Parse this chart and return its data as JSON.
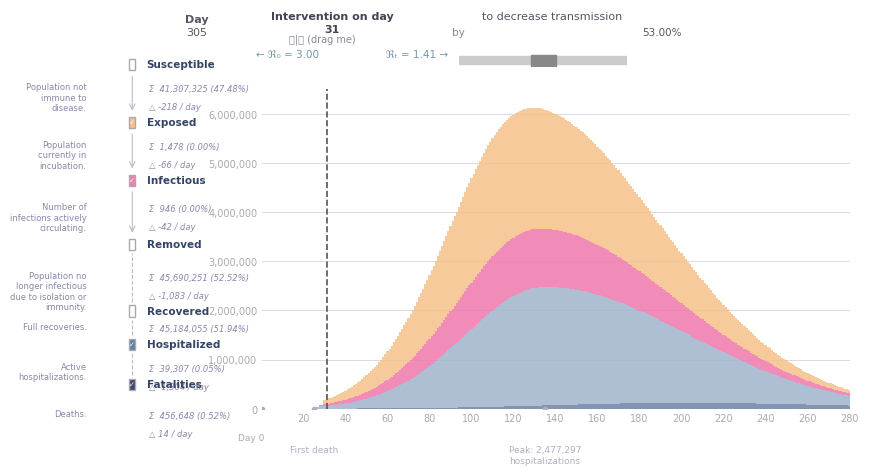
{
  "title_left": "Day\n305",
  "intervention_day": 31,
  "intervention_label": "Intervention on day\n31",
  "r0_label": "← ℜ₀ = 3.00",
  "rt_label": "ℜₜ = 1.41 →",
  "decrease_label": "to decrease transmission",
  "by_label": "by",
  "percent_label": "53.00%",
  "peak_label": "Peak: 2,477,297\nhospitalizations",
  "first_death_label": "First death",
  "xlabel": "Day 0",
  "xlim": [
    0,
    280
  ],
  "ylim": [
    0,
    6500000
  ],
  "yticks": [
    0,
    1000000,
    2000000,
    3000000,
    4000000,
    5000000,
    6000000
  ],
  "ytick_labels": [
    "0",
    "1,000,000",
    "2,000,000",
    "3,000,000",
    "4,000,000",
    "5,000,000",
    "6,000,000"
  ],
  "xticks": [
    20,
    40,
    60,
    80,
    100,
    120,
    140,
    160,
    180,
    200,
    220,
    240,
    260,
    280
  ],
  "color_exposed": "#f5c18a",
  "color_infectious": "#f07fb0",
  "color_hospitalized": "#a0b4cc",
  "color_fatalities": "#8090b0",
  "background_color": "#ffffff",
  "grid_color": "#ccccdd",
  "intervention_line_color": "#777777",
  "peak_day": 127,
  "sidebar_items": [
    {
      "label": "Susceptible",
      "color": "white",
      "border": "#aaaaaa",
      "checked": false
    },
    {
      "desc": "Population not\nimmune to\ndisease.",
      "sum": "41,307,325 (47.48%)",
      "delta": "-218 / day"
    },
    {
      "label": "Exposed",
      "color": "#f5c18a",
      "border": "#f5c18a",
      "checked": true
    },
    {
      "desc": "Population\ncurrently in\nincubation.",
      "sum": "1,478 (0.00%)",
      "delta": "-66 / day"
    },
    {
      "label": "Infectious",
      "color": "#f07fb0",
      "border": "#f07fb0",
      "checked": true
    },
    {
      "desc": "Number of\ninfections actively\ncirculating.",
      "sum": "946 (0.00%)",
      "delta": "-42 / day"
    },
    {
      "label": "Removed",
      "color": "white",
      "border": "#aaaaaa",
      "checked": false
    },
    {
      "desc": "Population no\nlonger infectious\ndue to isolation or\nimmunity.",
      "sum": "45,690,251 (52.52%)",
      "delta": "-1,083 / day"
    },
    {
      "label": "Recovered",
      "color": "white",
      "border": "#aaaaaa",
      "checked": false
    },
    {
      "desc": "Full recoveries.",
      "sum": "45,184,055 (51.94%)",
      "delta": ""
    },
    {
      "label": "Hospitalized",
      "color": "#6080b0",
      "border": "#6080b0",
      "checked": true
    },
    {
      "desc": "Active\nhospitalizations.",
      "sum": "39,307 (0.05%)",
      "delta": "-1,304 / day"
    },
    {
      "label": "Fatalities",
      "color": "#404870",
      "border": "#404870",
      "checked": true
    },
    {
      "desc": "Deaths.",
      "sum": "456,648 (0.52%)",
      "delta": "14 / day"
    }
  ]
}
